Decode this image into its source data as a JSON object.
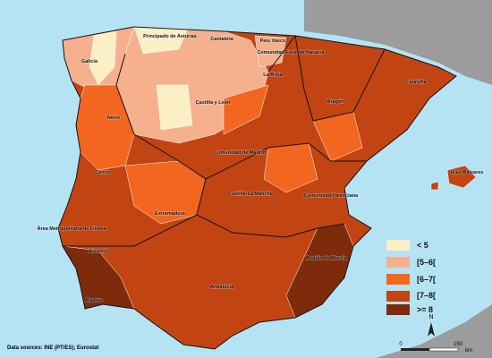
{
  "regions": [
    "Principado de Asturias",
    "Cantabria",
    "País Vasco",
    "Comunidad Foral de Navarra",
    "Galicia",
    "La Rioja",
    "Cataluña",
    "Aragón",
    "Castilla y León",
    "Norte",
    "Comunidad de Madrid",
    "Centro",
    "Islas Baleares",
    "Comunidad Valenciana",
    "Castilla-La Mancha",
    "Extremadura",
    "Área Metropolitana de Lisboa",
    "Alentejo",
    "Región de Murcia",
    "Andalucía",
    "Algarve"
  ],
  "legend": [
    "< 5",
    "[5–6[",
    "[6–7[",
    "[7–8[",
    ">= 8"
  ],
  "scale": {
    "start": "0",
    "end": "150",
    "unit": "km"
  },
  "north": "N",
  "source": "Data sources: INE (PT/ES); Eurostat"
}
